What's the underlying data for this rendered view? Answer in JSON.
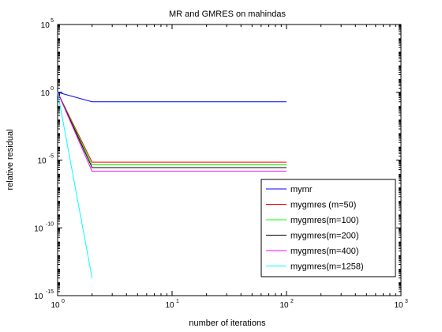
{
  "chart_data": {
    "type": "line",
    "title": "MR and GMRES on mahindas",
    "xlabel": "number of iterations",
    "ylabel": "relative residual",
    "xscale": "log",
    "yscale": "log",
    "xlim": [
      1,
      1000
    ],
    "ylim": [
      1e-15,
      100000
    ],
    "x_ticks": [
      {
        "value": 1,
        "base": "10",
        "exp": "0"
      },
      {
        "value": 10,
        "base": "10",
        "exp": "1"
      },
      {
        "value": 100,
        "base": "10",
        "exp": "2"
      },
      {
        "value": 1000,
        "base": "10",
        "exp": "3"
      }
    ],
    "y_ticks": [
      {
        "value": 1e-15,
        "base": "10",
        "exp": "-15"
      },
      {
        "value": 1e-10,
        "base": "10",
        "exp": "-10"
      },
      {
        "value": 1e-05,
        "base": "10",
        "exp": "-5"
      },
      {
        "value": 1,
        "base": "10",
        "exp": "0"
      },
      {
        "value": 100000,
        "base": "10",
        "exp": "5"
      }
    ],
    "legend_position": "bottom-right",
    "series": [
      {
        "name": "mymr",
        "color": "#0000ff",
        "points": [
          [
            1,
            1
          ],
          [
            2,
            0.2
          ],
          [
            100,
            0.2
          ]
        ]
      },
      {
        "name": "mygmres (m=50)",
        "color": "#ff0000",
        "points": [
          [
            1,
            1
          ],
          [
            2,
            7e-06
          ],
          [
            100,
            7e-06
          ]
        ]
      },
      {
        "name": "mygmres(m=100)",
        "color": "#00ff00",
        "points": [
          [
            1,
            1
          ],
          [
            2,
            4.5e-06
          ],
          [
            100,
            4.5e-06
          ]
        ]
      },
      {
        "name": "mygmres(m=200)",
        "color": "#000000",
        "points": [
          [
            1,
            1
          ],
          [
            2,
            2.8e-06
          ],
          [
            100,
            2.8e-06
          ]
        ]
      },
      {
        "name": "mygmres(m=400)",
        "color": "#ff00ff",
        "points": [
          [
            1,
            1
          ],
          [
            2,
            1.5e-06
          ],
          [
            100,
            1.5e-06
          ]
        ]
      },
      {
        "name": "mygmres(m=1258)",
        "color": "#00ffff",
        "points": [
          [
            1,
            1
          ],
          [
            2,
            2e-14
          ]
        ]
      }
    ]
  }
}
